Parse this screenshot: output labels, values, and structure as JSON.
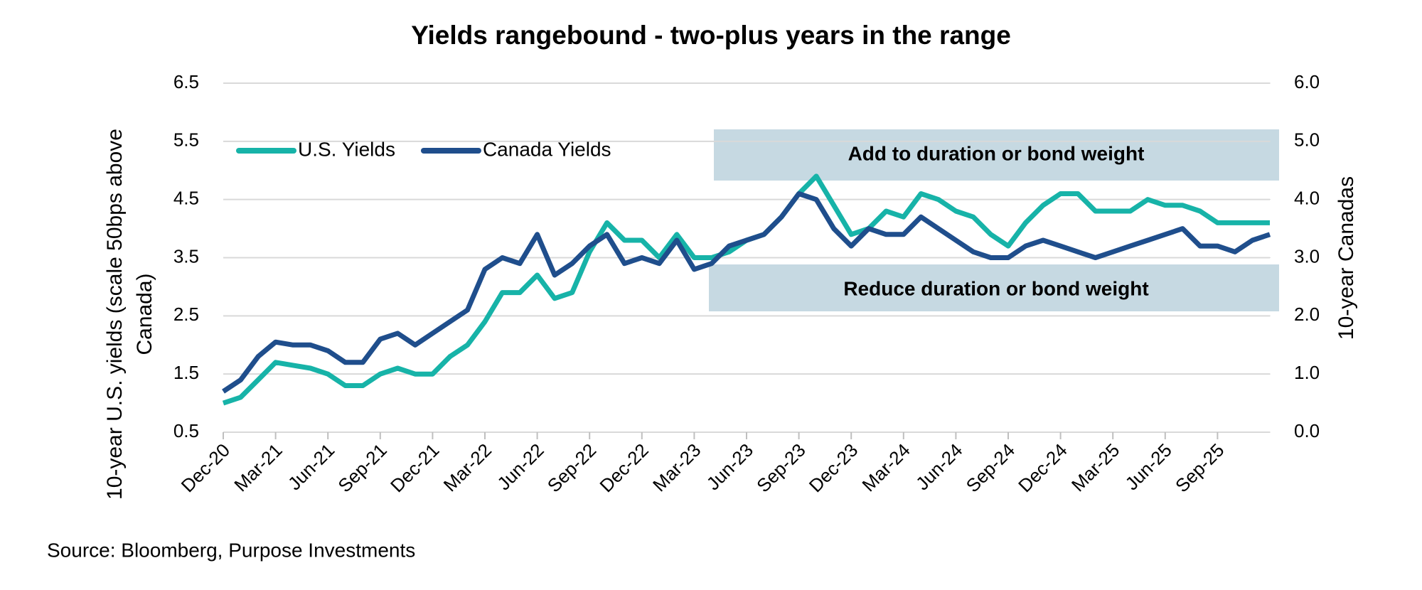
{
  "chart_data": {
    "type": "line",
    "title": "Yields rangebound - two-plus years in the range",
    "y_label": "10-year U.S. yields (scale 50bps above Canada)",
    "y2_label": "10-year Canadas",
    "source": "Source: Bloomberg, Purpose Investments",
    "annotations": [
      "Add to duration or bond weight",
      "Reduce duration or bond weight"
    ],
    "x": [
      "Dec-20",
      null,
      null,
      "Mar-21",
      null,
      null,
      "Jun-21",
      null,
      null,
      "Sep-21",
      null,
      null,
      "Dec-21",
      null,
      null,
      "Mar-22",
      null,
      null,
      "Jun-22",
      null,
      null,
      "Sep-22",
      null,
      null,
      "Dec-22",
      null,
      null,
      "Mar-23",
      null,
      null,
      "Jun-23",
      null,
      null,
      "Sep-23",
      null,
      null,
      "Dec-23",
      null,
      null,
      "Mar-24",
      null,
      null,
      "Jun-24",
      null,
      null,
      "Sep-24",
      null,
      null,
      "Dec-24",
      null,
      null,
      "Mar-25",
      null,
      null,
      "Jun-25",
      null,
      null,
      "Sep-25",
      null,
      null,
      null
    ],
    "series": [
      {
        "name": "U.S. Yields",
        "color": "#17b3a8",
        "axis": "y",
        "values": [
          1.0,
          1.1,
          1.4,
          1.7,
          1.65,
          1.6,
          1.5,
          1.3,
          1.3,
          1.5,
          1.6,
          1.5,
          1.5,
          1.8,
          2.0,
          2.4,
          2.9,
          2.9,
          3.2,
          2.8,
          2.9,
          3.6,
          4.1,
          3.8,
          3.8,
          3.5,
          3.9,
          3.5,
          3.5,
          3.6,
          3.8,
          3.9,
          4.2,
          4.6,
          4.9,
          4.4,
          3.9,
          4.0,
          4.3,
          4.2,
          4.6,
          4.5,
          4.3,
          4.2,
          3.9,
          3.7,
          4.1,
          4.4,
          4.6,
          4.6,
          4.3,
          4.3,
          4.3,
          4.5,
          4.4,
          4.4,
          4.3,
          4.1,
          4.1,
          4.1,
          4.1
        ]
      },
      {
        "name": "Canada Yields",
        "color": "#1f4e8c",
        "axis": "y2",
        "values": [
          0.7,
          0.9,
          1.3,
          1.55,
          1.5,
          1.5,
          1.4,
          1.2,
          1.2,
          1.6,
          1.7,
          1.5,
          1.7,
          1.9,
          2.1,
          2.8,
          3.0,
          2.9,
          3.4,
          2.7,
          2.9,
          3.2,
          3.4,
          2.9,
          3.0,
          2.9,
          3.3,
          2.8,
          2.9,
          3.2,
          3.3,
          3.4,
          3.7,
          4.1,
          4.0,
          3.5,
          3.2,
          3.5,
          3.4,
          3.4,
          3.7,
          3.5,
          3.3,
          3.1,
          3.0,
          3.0,
          3.2,
          3.3,
          3.2,
          3.1,
          3.0,
          3.1,
          3.2,
          3.3,
          3.4,
          3.5,
          3.2,
          3.2,
          3.1,
          3.3,
          3.4
        ]
      }
    ],
    "ylim": [
      0.5,
      6.5
    ],
    "yticks": [
      0.5,
      1.5,
      2.5,
      3.5,
      4.5,
      5.5,
      6.5
    ],
    "y2lim": [
      0,
      6
    ],
    "y2ticks": [
      {
        "value": 0,
        "label": "0.0"
      },
      {
        "value": 1,
        "label": "1.0"
      },
      {
        "value": 2,
        "label": "2.0"
      },
      {
        "value": 3,
        "label": "3.0"
      },
      {
        "value": 4,
        "label": "4.0"
      },
      {
        "value": 5,
        "label": "5.0"
      },
      {
        "value": 6,
        "label": "6.0"
      }
    ],
    "grid": true,
    "legend": "upper-left"
  }
}
